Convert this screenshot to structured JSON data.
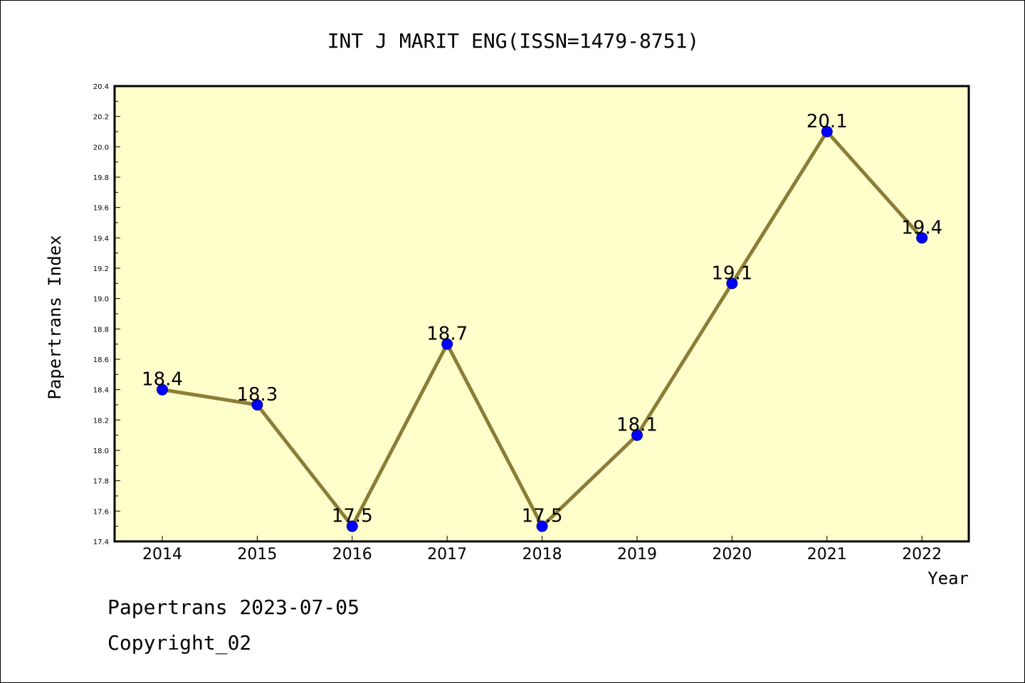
{
  "chart_data": {
    "type": "line",
    "title": "INT J MARIT ENG(ISSN=1479-8751)",
    "xlabel": "Year",
    "ylabel": "Papertrans Index",
    "categories": [
      "2014",
      "2015",
      "2016",
      "2017",
      "2018",
      "2019",
      "2020",
      "2021",
      "2022"
    ],
    "values": [
      18.4,
      18.3,
      17.5,
      18.7,
      17.5,
      18.1,
      19.1,
      20.1,
      19.4
    ],
    "data_labels": [
      "18.4",
      "18.3",
      "17.5",
      "18.7",
      "17.5",
      "18.1",
      "19.1",
      "20.1",
      "19.4"
    ],
    "ylim": [
      17.4,
      20.4
    ],
    "yticks": [
      "17.4",
      "17.6",
      "17.8",
      "18.0",
      "18.2",
      "18.4",
      "18.6",
      "18.8",
      "19.0",
      "19.2",
      "19.4",
      "19.6",
      "19.8",
      "20.0",
      "20.2",
      "20.4"
    ],
    "grid": false,
    "legend": "none",
    "colors": {
      "plot_background": "#ffffcc",
      "line": "#8b7d36",
      "marker": "#0000ff",
      "marker_edge": "#00008b"
    }
  },
  "footer": {
    "line1": "Papertrans 2023-07-05",
    "line2": "Copyright_02"
  }
}
